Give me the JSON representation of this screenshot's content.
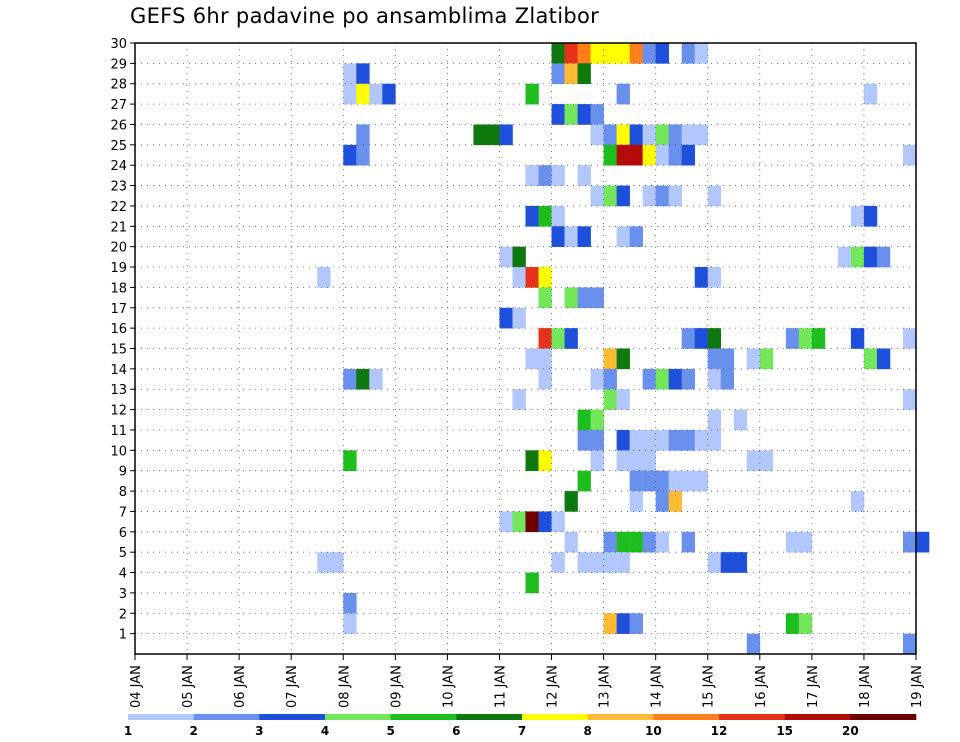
{
  "chart_data": {
    "type": "heatmap",
    "title": "GEFS 6hr padavine po ansamblima Zlatibor",
    "xlabel": "",
    "ylabel": "",
    "x_tick_labels": [
      "04 JAN",
      "05 JAN",
      "06 JAN",
      "07 JAN",
      "08 JAN",
      "09 JAN",
      "10 JAN",
      "11 JAN",
      "12 JAN",
      "13 JAN",
      "14 JAN",
      "15 JAN",
      "16 JAN",
      "17 JAN",
      "18 JAN",
      "19 JAN"
    ],
    "x_unit": "days from 04 JAN, 6-hourly steps",
    "xlim": [
      0,
      15
    ],
    "y_tick_labels": [
      "1",
      "2",
      "3",
      "4",
      "5",
      "6",
      "7",
      "8",
      "9",
      "10",
      "11",
      "12",
      "13",
      "14",
      "15",
      "16",
      "17",
      "18",
      "19",
      "20",
      "21",
      "22",
      "23",
      "24",
      "25",
      "26",
      "27",
      "28",
      "29",
      "30"
    ],
    "ylim": [
      0,
      30
    ],
    "grid": true,
    "colorbar": {
      "labels": [
        "1",
        "2",
        "3",
        "4",
        "5",
        "6",
        "7",
        "8",
        "10",
        "12",
        "15",
        "20"
      ],
      "colors": [
        "#b3c7ff",
        "#6a90ee",
        "#1e50dc",
        "#73e65c",
        "#1ebe1e",
        "#0f780f",
        "#ffff00",
        "#ffbb33",
        "#ff7f1a",
        "#e6321a",
        "#b40a0a",
        "#6e0000"
      ]
    },
    "cells": [
      [
        8.0,
        30,
        "#0f780f"
      ],
      [
        8.25,
        30,
        "#e6321a"
      ],
      [
        8.5,
        30,
        "#ff7f1a"
      ],
      [
        8.75,
        30,
        "#ffff00"
      ],
      [
        9.0,
        30,
        "#ffff00"
      ],
      [
        9.25,
        30,
        "#ffff00"
      ],
      [
        9.5,
        30,
        "#ff7f1a"
      ],
      [
        9.75,
        30,
        "#6a90ee"
      ],
      [
        10.0,
        30,
        "#1e50dc"
      ],
      [
        10.5,
        30,
        "#6a90ee"
      ],
      [
        10.75,
        30,
        "#b3c7ff"
      ],
      [
        4.0,
        29,
        "#b3c7ff"
      ],
      [
        4.25,
        29,
        "#1e50dc"
      ],
      [
        8.0,
        29,
        "#6a90ee"
      ],
      [
        8.25,
        29,
        "#ffbb33"
      ],
      [
        8.5,
        29,
        "#0f780f"
      ],
      [
        4.0,
        28,
        "#b3c7ff"
      ],
      [
        4.25,
        28,
        "#ffff00"
      ],
      [
        4.5,
        28,
        "#b3c7ff"
      ],
      [
        4.75,
        28,
        "#1e50dc"
      ],
      [
        7.5,
        28,
        "#1ebe1e"
      ],
      [
        9.25,
        28,
        "#6a90ee"
      ],
      [
        14.0,
        28,
        "#b3c7ff"
      ],
      [
        8.0,
        27,
        "#1e50dc"
      ],
      [
        8.25,
        27,
        "#73e65c"
      ],
      [
        8.5,
        27,
        "#1e50dc"
      ],
      [
        8.75,
        27,
        "#6a90ee"
      ],
      [
        4.25,
        26,
        "#6a90ee"
      ],
      [
        6.5,
        26,
        "#0f780f"
      ],
      [
        6.75,
        26,
        "#0f780f"
      ],
      [
        7.0,
        26,
        "#1e50dc"
      ],
      [
        8.75,
        26,
        "#b3c7ff"
      ],
      [
        9.0,
        26,
        "#6a90ee"
      ],
      [
        9.25,
        26,
        "#ffff00"
      ],
      [
        9.5,
        26,
        "#1e50dc"
      ],
      [
        9.75,
        26,
        "#b3c7ff"
      ],
      [
        10.0,
        26,
        "#73e65c"
      ],
      [
        10.25,
        26,
        "#6a90ee"
      ],
      [
        10.5,
        26,
        "#b3c7ff"
      ],
      [
        10.75,
        26,
        "#b3c7ff"
      ],
      [
        4.0,
        25,
        "#1e50dc"
      ],
      [
        4.25,
        25,
        "#6a90ee"
      ],
      [
        9.0,
        25,
        "#1ebe1e"
      ],
      [
        9.25,
        25,
        "#b40a0a"
      ],
      [
        9.5,
        25,
        "#b40a0a"
      ],
      [
        9.75,
        25,
        "#ffff00"
      ],
      [
        10.0,
        25,
        "#b3c7ff"
      ],
      [
        10.25,
        25,
        "#6a90ee"
      ],
      [
        10.5,
        25,
        "#1e50dc"
      ],
      [
        14.75,
        25,
        "#b3c7ff"
      ],
      [
        7.5,
        24,
        "#b3c7ff"
      ],
      [
        7.75,
        24,
        "#6a90ee"
      ],
      [
        8.0,
        24,
        "#b3c7ff"
      ],
      [
        8.5,
        24,
        "#b3c7ff"
      ],
      [
        8.75,
        23,
        "#b3c7ff"
      ],
      [
        9.0,
        23,
        "#73e65c"
      ],
      [
        9.25,
        23,
        "#1e50dc"
      ],
      [
        9.75,
        23,
        "#b3c7ff"
      ],
      [
        10.0,
        23,
        "#6a90ee"
      ],
      [
        10.25,
        23,
        "#b3c7ff"
      ],
      [
        11.0,
        23,
        "#b3c7ff"
      ],
      [
        7.5,
        22,
        "#1e50dc"
      ],
      [
        7.75,
        22,
        "#1ebe1e"
      ],
      [
        8.0,
        22,
        "#b3c7ff"
      ],
      [
        13.75,
        22,
        "#b3c7ff"
      ],
      [
        14.0,
        22,
        "#1e50dc"
      ],
      [
        8.0,
        21,
        "#1e50dc"
      ],
      [
        8.25,
        21,
        "#b3c7ff"
      ],
      [
        8.5,
        21,
        "#1e50dc"
      ],
      [
        9.25,
        21,
        "#b3c7ff"
      ],
      [
        9.5,
        21,
        "#6a90ee"
      ],
      [
        7.0,
        20,
        "#b3c7ff"
      ],
      [
        7.25,
        20,
        "#0f780f"
      ],
      [
        13.5,
        20,
        "#b3c7ff"
      ],
      [
        13.75,
        20,
        "#73e65c"
      ],
      [
        14.0,
        20,
        "#1e50dc"
      ],
      [
        14.25,
        20,
        "#6a90ee"
      ],
      [
        3.5,
        19,
        "#b3c7ff"
      ],
      [
        7.25,
        19,
        "#b3c7ff"
      ],
      [
        7.5,
        19,
        "#e6321a"
      ],
      [
        7.75,
        19,
        "#ffff00"
      ],
      [
        10.75,
        19,
        "#1e50dc"
      ],
      [
        11.0,
        19,
        "#b3c7ff"
      ],
      [
        7.75,
        18,
        "#73e65c"
      ],
      [
        8.25,
        18,
        "#73e65c"
      ],
      [
        8.5,
        18,
        "#6a90ee"
      ],
      [
        8.75,
        18,
        "#6a90ee"
      ],
      [
        7.0,
        17,
        "#1e50dc"
      ],
      [
        7.25,
        17,
        "#b3c7ff"
      ],
      [
        7.75,
        16,
        "#e6321a"
      ],
      [
        8.0,
        16,
        "#73e65c"
      ],
      [
        8.25,
        16,
        "#1e50dc"
      ],
      [
        10.5,
        16,
        "#6a90ee"
      ],
      [
        10.75,
        16,
        "#1e50dc"
      ],
      [
        11.0,
        16,
        "#0f780f"
      ],
      [
        12.5,
        16,
        "#6a90ee"
      ],
      [
        12.75,
        16,
        "#73e65c"
      ],
      [
        13.0,
        16,
        "#1ebe1e"
      ],
      [
        13.75,
        16,
        "#1e50dc"
      ],
      [
        14.75,
        16,
        "#b3c7ff"
      ],
      [
        7.5,
        15,
        "#b3c7ff"
      ],
      [
        7.75,
        15,
        "#b3c7ff"
      ],
      [
        9.0,
        15,
        "#ffbb33"
      ],
      [
        9.25,
        15,
        "#0f780f"
      ],
      [
        11.25,
        15,
        "#6a90ee"
      ],
      [
        11.0,
        15,
        "#6a90ee"
      ],
      [
        11.75,
        15,
        "#b3c7ff"
      ],
      [
        12.0,
        15,
        "#73e65c"
      ],
      [
        14.0,
        15,
        "#73e65c"
      ],
      [
        14.25,
        15,
        "#1e50dc"
      ],
      [
        4.0,
        14,
        "#6a90ee"
      ],
      [
        4.25,
        14,
        "#0f780f"
      ],
      [
        4.5,
        14,
        "#b3c7ff"
      ],
      [
        7.75,
        14,
        "#b3c7ff"
      ],
      [
        8.75,
        14,
        "#b3c7ff"
      ],
      [
        9.0,
        14,
        "#6a90ee"
      ],
      [
        9.75,
        14,
        "#6a90ee"
      ],
      [
        10.0,
        14,
        "#73e65c"
      ],
      [
        10.25,
        14,
        "#1e50dc"
      ],
      [
        10.5,
        14,
        "#6a90ee"
      ],
      [
        11.0,
        14,
        "#b3c7ff"
      ],
      [
        11.25,
        14,
        "#6a90ee"
      ],
      [
        7.25,
        13,
        "#b3c7ff"
      ],
      [
        9.0,
        13,
        "#73e65c"
      ],
      [
        9.25,
        13,
        "#b3c7ff"
      ],
      [
        14.75,
        13,
        "#b3c7ff"
      ],
      [
        8.5,
        12,
        "#1ebe1e"
      ],
      [
        8.75,
        12,
        "#73e65c"
      ],
      [
        11.0,
        12,
        "#b3c7ff"
      ],
      [
        11.5,
        12,
        "#b3c7ff"
      ],
      [
        8.5,
        11,
        "#6a90ee"
      ],
      [
        8.75,
        11,
        "#6a90ee"
      ],
      [
        9.25,
        11,
        "#1e50dc"
      ],
      [
        9.5,
        11,
        "#b3c7ff"
      ],
      [
        9.75,
        11,
        "#b3c7ff"
      ],
      [
        10.0,
        11,
        "#b3c7ff"
      ],
      [
        10.25,
        11,
        "#6a90ee"
      ],
      [
        10.5,
        11,
        "#6a90ee"
      ],
      [
        10.75,
        11,
        "#b3c7ff"
      ],
      [
        11.0,
        11,
        "#b3c7ff"
      ],
      [
        4.0,
        10,
        "#1ebe1e"
      ],
      [
        7.5,
        10,
        "#0f780f"
      ],
      [
        7.75,
        10,
        "#ffff00"
      ],
      [
        8.75,
        10,
        "#b3c7ff"
      ],
      [
        9.25,
        10,
        "#b3c7ff"
      ],
      [
        9.5,
        10,
        "#b3c7ff"
      ],
      [
        9.75,
        10,
        "#b3c7ff"
      ],
      [
        11.75,
        10,
        "#b3c7ff"
      ],
      [
        12.0,
        10,
        "#b3c7ff"
      ],
      [
        8.5,
        9,
        "#1ebe1e"
      ],
      [
        9.5,
        9,
        "#6a90ee"
      ],
      [
        9.75,
        9,
        "#6a90ee"
      ],
      [
        10.0,
        9,
        "#6a90ee"
      ],
      [
        10.25,
        9,
        "#b3c7ff"
      ],
      [
        10.5,
        9,
        "#b3c7ff"
      ],
      [
        10.75,
        9,
        "#b3c7ff"
      ],
      [
        8.25,
        8,
        "#0f780f"
      ],
      [
        9.5,
        8,
        "#b3c7ff"
      ],
      [
        10.0,
        8,
        "#6a90ee"
      ],
      [
        10.25,
        8,
        "#ffbb33"
      ],
      [
        13.75,
        8,
        "#b3c7ff"
      ],
      [
        7.0,
        7,
        "#b3c7ff"
      ],
      [
        7.25,
        7,
        "#73e65c"
      ],
      [
        7.5,
        7,
        "#6e0000"
      ],
      [
        7.75,
        7,
        "#1e50dc"
      ],
      [
        8.0,
        7,
        "#b3c7ff"
      ],
      [
        8.25,
        6,
        "#b3c7ff"
      ],
      [
        9.0,
        6,
        "#6a90ee"
      ],
      [
        9.25,
        6,
        "#1ebe1e"
      ],
      [
        9.5,
        6,
        "#1ebe1e"
      ],
      [
        9.75,
        6,
        "#6a90ee"
      ],
      [
        10.0,
        6,
        "#b3c7ff"
      ],
      [
        10.5,
        6,
        "#6a90ee"
      ],
      [
        12.5,
        6,
        "#b3c7ff"
      ],
      [
        12.75,
        6,
        "#b3c7ff"
      ],
      [
        14.75,
        6,
        "#6a90ee"
      ],
      [
        15.0,
        6,
        "#1e50dc"
      ],
      [
        3.5,
        5,
        "#b3c7ff"
      ],
      [
        3.75,
        5,
        "#b3c7ff"
      ],
      [
        8.0,
        5,
        "#b3c7ff"
      ],
      [
        8.5,
        5,
        "#b3c7ff"
      ],
      [
        8.75,
        5,
        "#b3c7ff"
      ],
      [
        9.0,
        5,
        "#b3c7ff"
      ],
      [
        9.25,
        5,
        "#b3c7ff"
      ],
      [
        11.0,
        5,
        "#b3c7ff"
      ],
      [
        11.25,
        5,
        "#1e50dc"
      ],
      [
        11.5,
        5,
        "#1e50dc"
      ],
      [
        7.5,
        4,
        "#1ebe1e"
      ],
      [
        4.0,
        3,
        "#6a90ee"
      ],
      [
        4.0,
        2,
        "#b3c7ff"
      ],
      [
        9.0,
        2,
        "#ffbb33"
      ],
      [
        9.25,
        2,
        "#1e50dc"
      ],
      [
        9.5,
        2,
        "#6a90ee"
      ],
      [
        12.5,
        2,
        "#1ebe1e"
      ],
      [
        12.75,
        2,
        "#73e65c"
      ],
      [
        11.75,
        1,
        "#6a90ee"
      ],
      [
        14.75,
        1,
        "#6a90ee"
      ]
    ]
  }
}
